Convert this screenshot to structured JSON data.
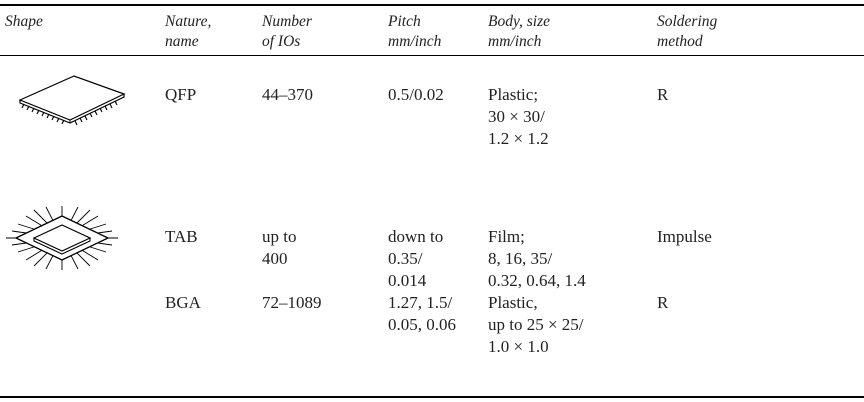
{
  "table": {
    "header": [
      [
        "Shape"
      ],
      [
        "Nature,",
        "name"
      ],
      [
        "Number",
        "of IOs"
      ],
      [
        "Pitch",
        "mm/inch"
      ],
      [
        "Body, size",
        "mm/inch"
      ],
      [
        "Soldering",
        "method"
      ]
    ],
    "rows": [
      [
        [
          "QFP"
        ],
        [
          "44–370"
        ],
        [
          "0.5/0.02"
        ],
        [
          "Plastic;",
          "30 × 30/",
          "1.2 × 1.2"
        ],
        [
          "R"
        ]
      ],
      [
        [
          "TAB"
        ],
        [
          "up to",
          "400"
        ],
        [
          "down to",
          "0.35/",
          "0.014"
        ],
        [
          "Film;",
          "8, 16, 35/",
          "0.32, 0.64, 1.4"
        ],
        [
          "Impulse"
        ]
      ],
      [
        [
          "BGA"
        ],
        [
          "72–1089"
        ],
        [
          "1.27, 1.5/",
          "0.05, 0.06"
        ],
        [
          "Plastic,",
          "up to 25 × 25/",
          "1.0 × 1.0"
        ],
        [
          "R"
        ]
      ]
    ]
  }
}
